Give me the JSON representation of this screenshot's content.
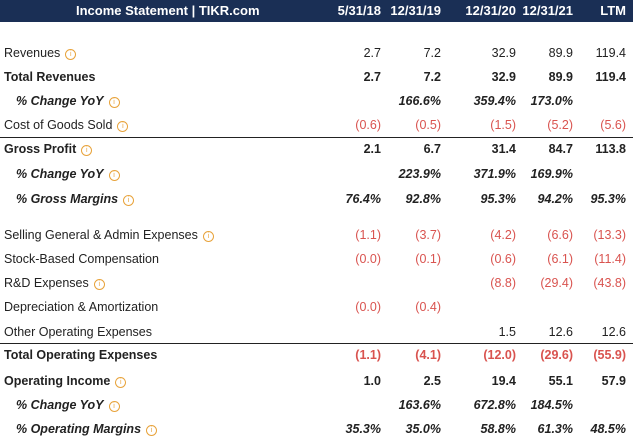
{
  "header": {
    "title": "Income Statement | TIKR.com",
    "columns": [
      "5/31/18",
      "12/31/19",
      "12/31/20",
      "12/31/21",
      "LTM"
    ]
  },
  "info_glyph": "i",
  "rows": [
    {
      "label": "Revenues",
      "values": [
        "2.7",
        "7.2",
        "32.9",
        "89.9",
        "119.4"
      ]
    },
    {
      "label": "Total Revenues",
      "values": [
        "2.7",
        "7.2",
        "32.9",
        "89.9",
        "119.4"
      ]
    },
    {
      "label": "% Change YoY",
      "values": [
        "",
        "166.6%",
        "359.4%",
        "173.0%",
        ""
      ]
    },
    {
      "label": "Cost of Goods Sold",
      "values": [
        "(0.6)",
        "(0.5)",
        "(1.5)",
        "(5.2)",
        "(5.6)"
      ]
    },
    {
      "label": "Gross Profit",
      "values": [
        "2.1",
        "6.7",
        "31.4",
        "84.7",
        "113.8"
      ]
    },
    {
      "label": "% Change YoY",
      "values": [
        "",
        "223.9%",
        "371.9%",
        "169.9%",
        ""
      ]
    },
    {
      "label": "% Gross Margins",
      "values": [
        "76.4%",
        "92.8%",
        "95.3%",
        "94.2%",
        "95.3%"
      ]
    },
    {
      "label": "Selling General & Admin Expenses",
      "values": [
        "(1.1)",
        "(3.7)",
        "(4.2)",
        "(6.6)",
        "(13.3)"
      ]
    },
    {
      "label": "Stock-Based Compensation",
      "values": [
        "(0.0)",
        "(0.1)",
        "(0.6)",
        "(6.1)",
        "(11.4)"
      ]
    },
    {
      "label": "R&D Expenses",
      "values": [
        "",
        "",
        "(8.8)",
        "(29.4)",
        "(43.8)"
      ]
    },
    {
      "label": "Depreciation & Amortization",
      "values": [
        "(0.0)",
        "(0.4)",
        "",
        "",
        ""
      ]
    },
    {
      "label": "Other Operating Expenses",
      "values": [
        "",
        "",
        "1.5",
        "12.6",
        "12.6"
      ]
    },
    {
      "label": "Total Operating Expenses",
      "values": [
        "(1.1)",
        "(4.1)",
        "(12.0)",
        "(29.6)",
        "(55.9)"
      ]
    },
    {
      "label": "Operating Income",
      "values": [
        "1.0",
        "2.5",
        "19.4",
        "55.1",
        "57.9"
      ]
    },
    {
      "label": "% Change YoY",
      "values": [
        "",
        "163.6%",
        "672.8%",
        "184.5%",
        ""
      ]
    },
    {
      "label": "% Operating Margins",
      "values": [
        "35.3%",
        "35.0%",
        "58.8%",
        "61.3%",
        "48.5%"
      ]
    }
  ],
  "colors": {
    "header_bg": "#1a2f55",
    "negative": "#d9534f",
    "info": "#e8a33b"
  }
}
